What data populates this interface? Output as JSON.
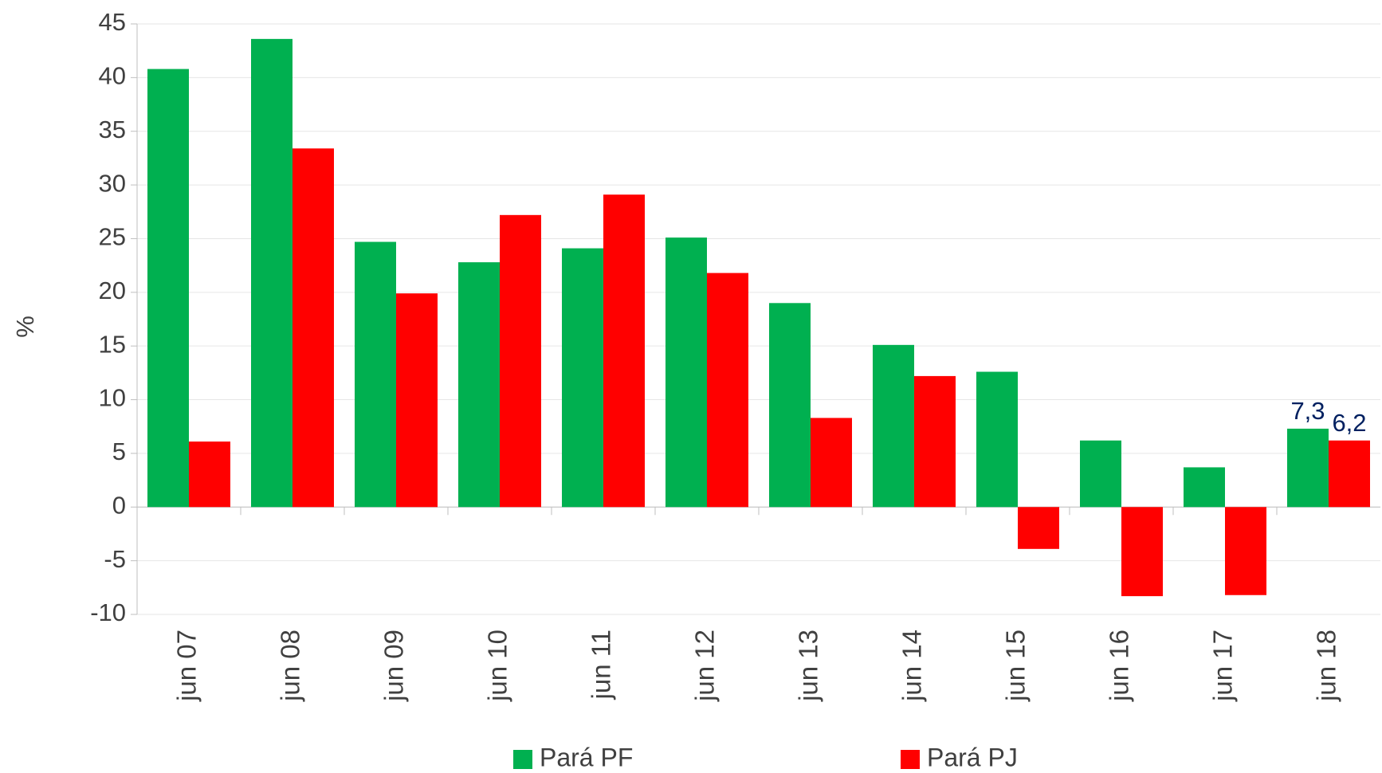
{
  "chart_data": {
    "type": "bar",
    "y_label": "%",
    "categories": [
      "jun 07",
      "jun 08",
      "jun 09",
      "jun 10",
      "jun 11",
      "jun 12",
      "jun 13",
      "jun 14",
      "jun 15",
      "jun 16",
      "jun 17",
      "jun 18"
    ],
    "series": [
      {
        "name": "Pará PF",
        "color": "#00b050",
        "values": [
          40.8,
          43.6,
          24.7,
          22.8,
          24.1,
          25.1,
          19.0,
          15.1,
          12.6,
          6.2,
          3.7,
          7.3
        ],
        "value_labels": [
          null,
          null,
          null,
          null,
          null,
          null,
          null,
          null,
          null,
          null,
          null,
          "7,3"
        ]
      },
      {
        "name": "Pará PJ",
        "color": "#ff0000",
        "values": [
          6.1,
          33.4,
          19.9,
          27.2,
          29.1,
          21.8,
          8.3,
          12.2,
          -3.9,
          -8.3,
          -8.2,
          6.2
        ],
        "value_labels": [
          null,
          null,
          null,
          null,
          null,
          null,
          null,
          null,
          null,
          null,
          null,
          "6,2"
        ]
      }
    ],
    "label_color": "#002060",
    "ylim": [
      -10,
      45
    ],
    "yticks": [
      -10,
      -5,
      0,
      5,
      10,
      15,
      20,
      25,
      30,
      35,
      40,
      45
    ],
    "grid": true,
    "legend": "bottom"
  }
}
